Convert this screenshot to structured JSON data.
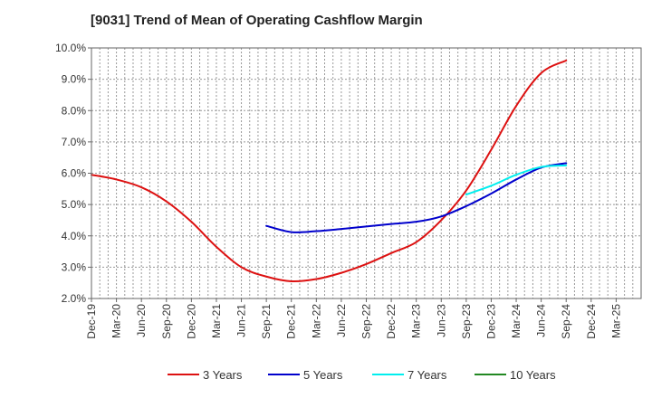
{
  "chart_data": {
    "type": "line",
    "title": "[9031]  Trend of Mean of Operating Cashflow Margin",
    "xlabel": "",
    "ylabel": "",
    "ylim": [
      2.0,
      10.0
    ],
    "grid": true,
    "legend_position": "bottom",
    "y_ticks": [
      "2.0%",
      "3.0%",
      "4.0%",
      "5.0%",
      "6.0%",
      "7.0%",
      "8.0%",
      "9.0%",
      "10.0%"
    ],
    "categories": [
      "Dec-19",
      "Mar-20",
      "Jun-20",
      "Sep-20",
      "Dec-20",
      "Mar-21",
      "Jun-21",
      "Sep-21",
      "Dec-21",
      "Mar-22",
      "Jun-22",
      "Sep-22",
      "Dec-22",
      "Mar-23",
      "Jun-23",
      "Sep-23",
      "Dec-23",
      "Mar-24",
      "Jun-24",
      "Sep-24",
      "Dec-24",
      "Mar-25"
    ],
    "series": [
      {
        "name": "3 Years",
        "color": "#dd1111",
        "values": [
          5.95,
          5.8,
          5.55,
          5.1,
          4.45,
          3.65,
          3.0,
          2.7,
          2.55,
          2.62,
          2.82,
          3.1,
          3.45,
          3.8,
          4.5,
          5.45,
          6.75,
          8.15,
          9.2,
          9.6,
          null,
          null
        ]
      },
      {
        "name": "5 Years",
        "color": "#0000cc",
        "values": [
          null,
          null,
          null,
          null,
          null,
          null,
          null,
          4.32,
          4.12,
          4.15,
          4.22,
          4.3,
          4.38,
          4.45,
          4.62,
          4.95,
          5.35,
          5.8,
          6.18,
          6.32,
          null,
          null
        ]
      },
      {
        "name": "7 Years",
        "color": "#00eeee",
        "values": [
          null,
          null,
          null,
          null,
          null,
          null,
          null,
          null,
          null,
          null,
          null,
          null,
          null,
          null,
          null,
          5.32,
          5.6,
          5.95,
          6.2,
          6.25,
          null,
          null
        ]
      },
      {
        "name": "10 Years",
        "color": "#228822",
        "values": [
          null,
          null,
          null,
          null,
          null,
          null,
          null,
          null,
          null,
          null,
          null,
          null,
          null,
          null,
          null,
          null,
          null,
          null,
          null,
          null,
          null,
          null
        ]
      }
    ]
  }
}
